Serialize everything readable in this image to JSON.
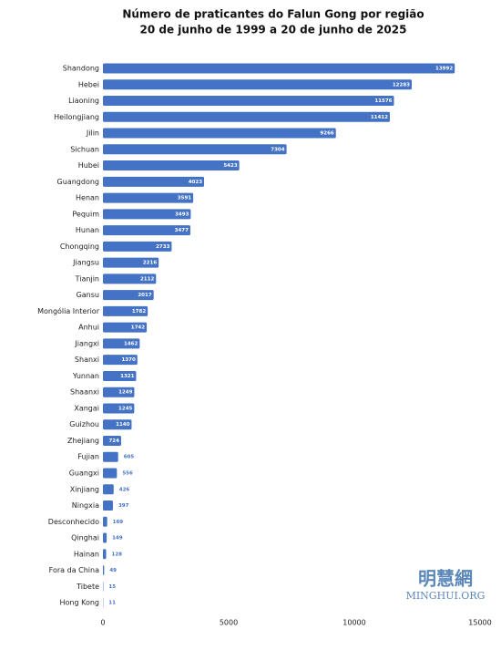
{
  "chart_data": {
    "type": "barh",
    "title": [
      "Número de praticantes do Falun Gong por região",
      "20 de junho de 1999 a 20 de junho de 2025"
    ],
    "categories": [
      "Shandong",
      "Hebei",
      "Liaoning",
      "Heilongjiang",
      "Jilin",
      "Sichuan",
      "Hubei",
      "Guangdong",
      "Henan",
      "Pequim",
      "Hunan",
      "Chongqing",
      "Jiangsu",
      "Tianjin",
      "Gansu",
      "Mongólia Interior",
      "Anhui",
      "Jiangxi",
      "Shanxi",
      "Yunnan",
      "Shaanxi",
      "Xangai",
      "Guizhou",
      "Zhejiang",
      "Fujian",
      "Guangxi",
      "Xinjiang",
      "Ningxia",
      "Desconhecido",
      "Qinghai",
      "Hainan",
      "Fora da China",
      "Tibete",
      "Hong Kong"
    ],
    "values": [
      13992,
      12283,
      11576,
      11412,
      9266,
      7304,
      5423,
      4023,
      3591,
      3493,
      3477,
      2733,
      2216,
      2112,
      2017,
      1782,
      1742,
      1462,
      1370,
      1321,
      1249,
      1245,
      1140,
      724,
      605,
      556,
      426,
      397,
      169,
      149,
      128,
      49,
      15,
      11
    ],
    "color": "#4472c4",
    "xlim": [
      0,
      15000
    ],
    "xticks": [
      0,
      5000,
      10000,
      15000
    ],
    "grid": false
  },
  "watermark": {
    "logo": "明慧網",
    "site": "MINGHUI.ORG"
  }
}
